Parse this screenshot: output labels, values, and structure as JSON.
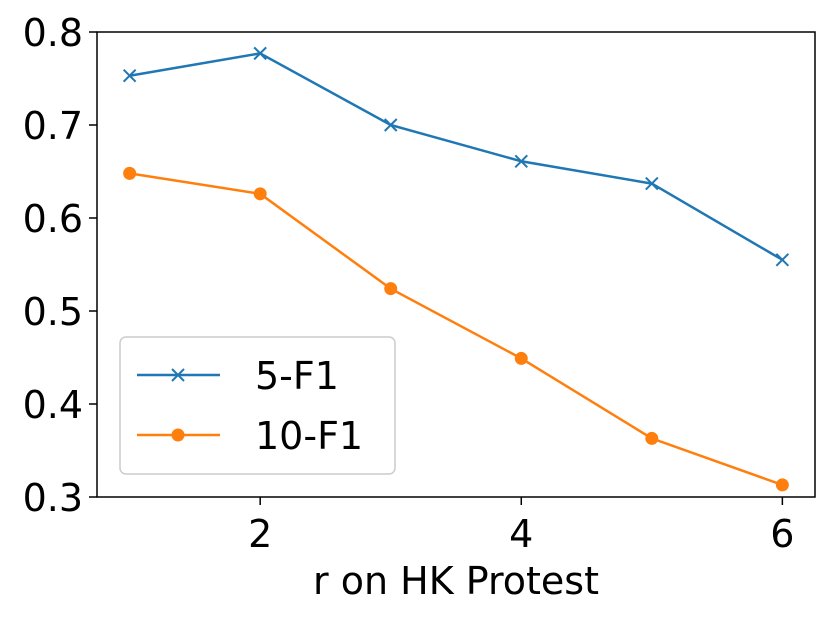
{
  "chart_data": {
    "type": "line",
    "xlabel": "r on HK Protest",
    "x": [
      1,
      2,
      3,
      4,
      5,
      6
    ],
    "series": [
      {
        "name": "5-F1",
        "color": "#1f77b4",
        "marker": "x",
        "values": [
          0.753,
          0.777,
          0.7,
          0.661,
          0.637,
          0.555
        ]
      },
      {
        "name": "10-F1",
        "color": "#ff7f0e",
        "marker": "o",
        "values": [
          0.648,
          0.626,
          0.524,
          0.449,
          0.363,
          0.313
        ]
      }
    ],
    "xlim": [
      0.75,
      6.25
    ],
    "xticks": [
      2,
      4,
      6
    ],
    "ylim": [
      0.3,
      0.8
    ],
    "yticks": [
      0.3,
      0.4,
      0.5,
      0.6,
      0.7,
      0.8
    ],
    "grid": false,
    "legend": "lower left"
  }
}
